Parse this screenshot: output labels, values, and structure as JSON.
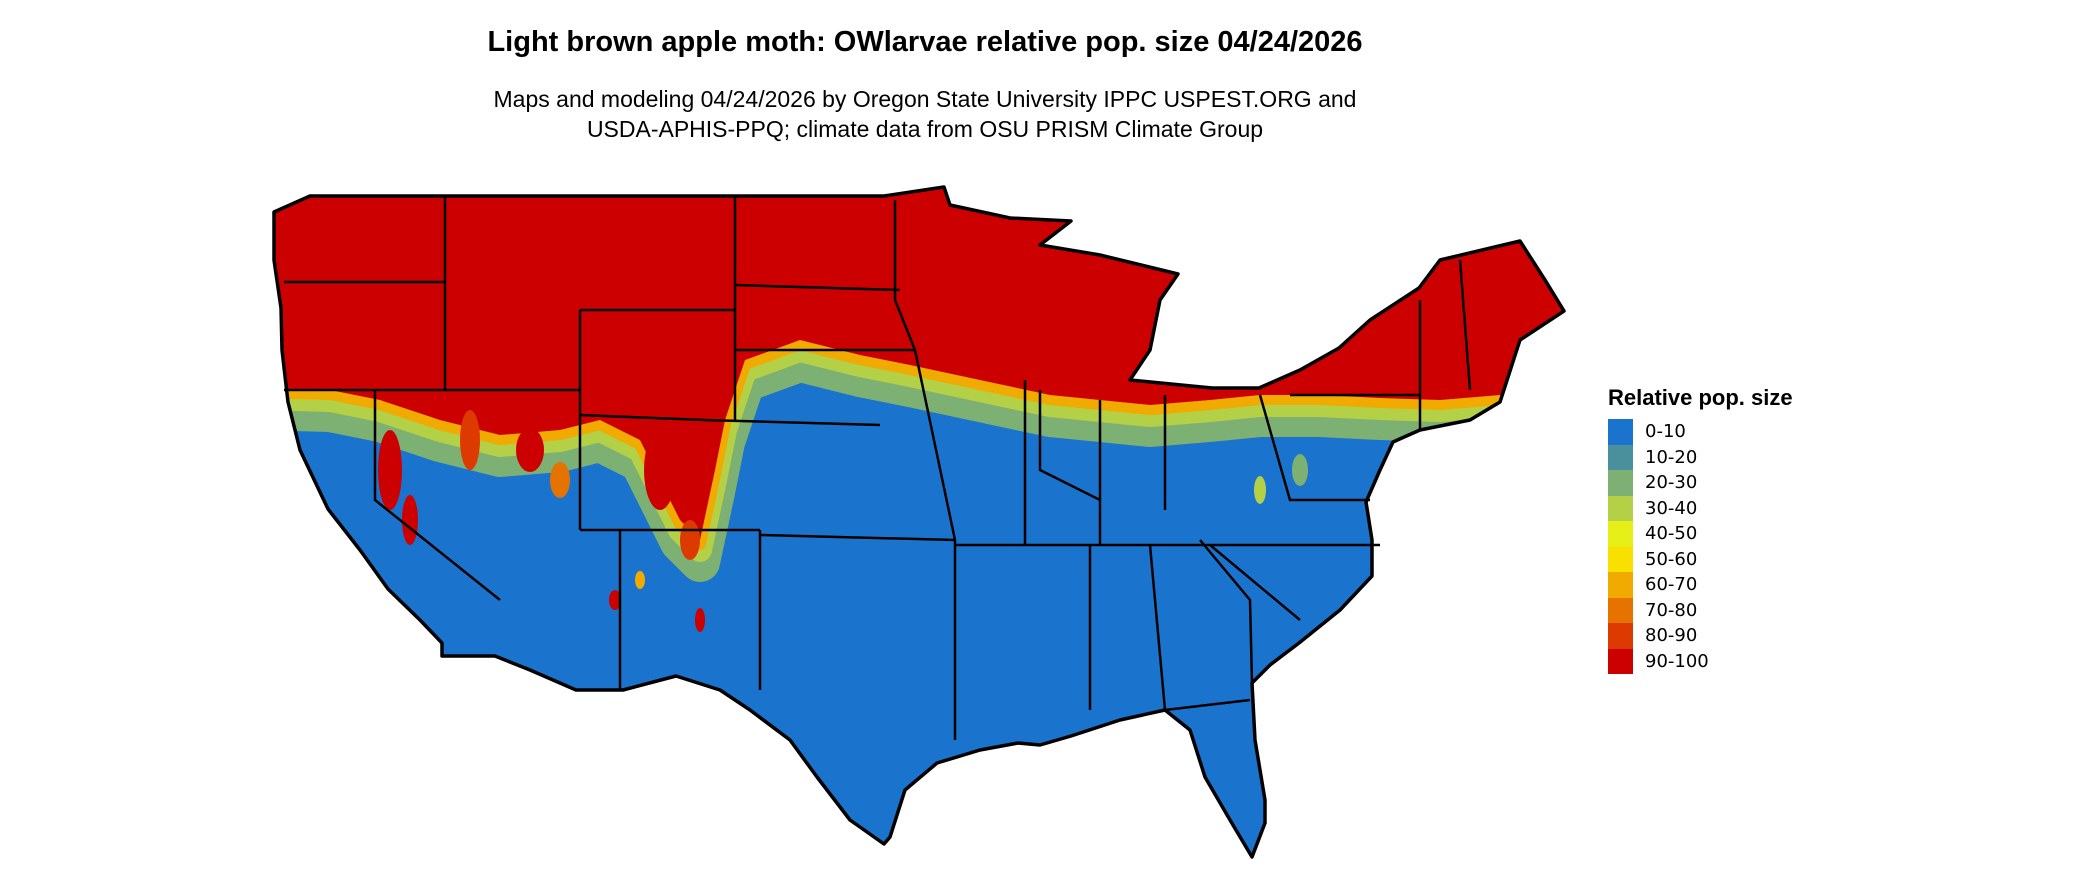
{
  "title": "Light brown apple moth: OWlarvae relative pop. size 04/24/2026",
  "subtitle": [
    "Maps and modeling 04/24/2026 by Oregon State University IPPC USPEST.ORG and",
    "USDA-APHIS-PPQ; climate data from OSU PRISM Climate Group"
  ],
  "legend": {
    "title": "Relative pop. size",
    "items": [
      {
        "label": "0-10",
        "color": "#1a74cd"
      },
      {
        "label": "10-20",
        "color": "#4a909c"
      },
      {
        "label": "20-30",
        "color": "#7db073"
      },
      {
        "label": "30-40",
        "color": "#b3d046"
      },
      {
        "label": "40-50",
        "color": "#e6f018"
      },
      {
        "label": "50-60",
        "color": "#f8e000"
      },
      {
        "label": "60-70",
        "color": "#f0aa00"
      },
      {
        "label": "70-80",
        "color": "#e67200"
      },
      {
        "label": "80-90",
        "color": "#dc3a00"
      },
      {
        "label": "90-100",
        "color": "#cc0000"
      }
    ]
  },
  "map": {
    "region": "Contiguous United States",
    "border_color": "#000000"
  }
}
